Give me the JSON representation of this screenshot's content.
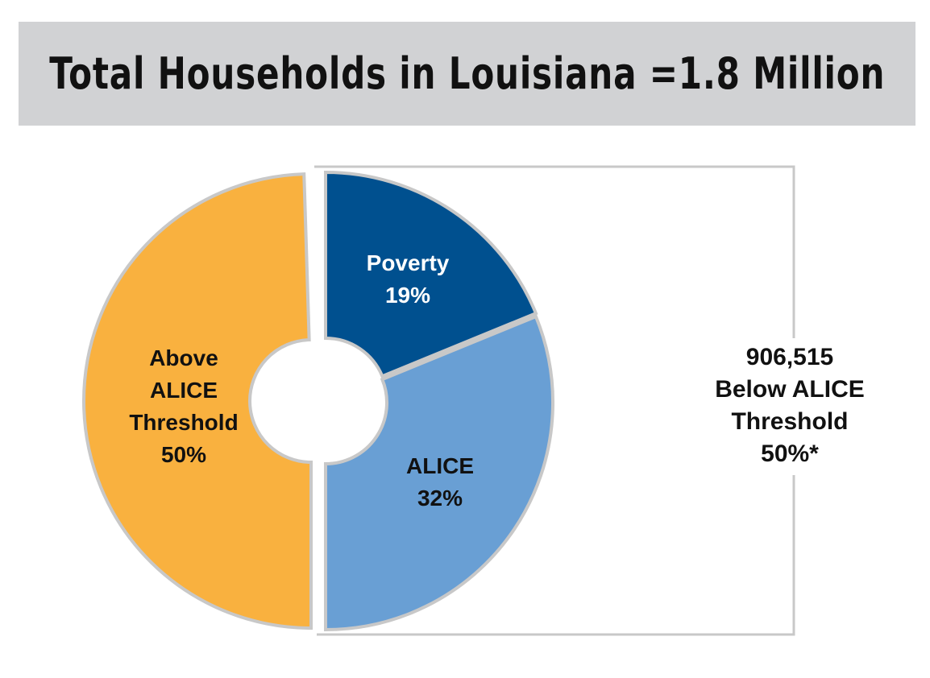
{
  "title": "Total Households in Louisiana =1.8 Million",
  "summary": {
    "count": "906,515",
    "line1": "Below ALICE",
    "line2": "Threshold",
    "percent": "50%*"
  },
  "chart_data": {
    "type": "pie",
    "title": "Total Households in Louisiana =1.8 Million",
    "slices": [
      {
        "name": "Poverty",
        "value": 19,
        "label_lines": [
          "Poverty",
          "19%"
        ],
        "color": "#00508f",
        "text_color": "#ffffff"
      },
      {
        "name": "ALICE",
        "value": 32,
        "label_lines": [
          "ALICE",
          "32%"
        ],
        "color": "#699fd4",
        "text_color": "#111111"
      },
      {
        "name": "Above ALICE Threshold",
        "value": 50,
        "label_lines": [
          "Above",
          "ALICE",
          "Threshold",
          "50%"
        ],
        "color": "#f9b13f",
        "text_color": "#111111"
      }
    ],
    "bracket": {
      "label": "906,515 Below ALICE Threshold 50%*",
      "color": "#c8c8c8"
    },
    "donut": true
  }
}
